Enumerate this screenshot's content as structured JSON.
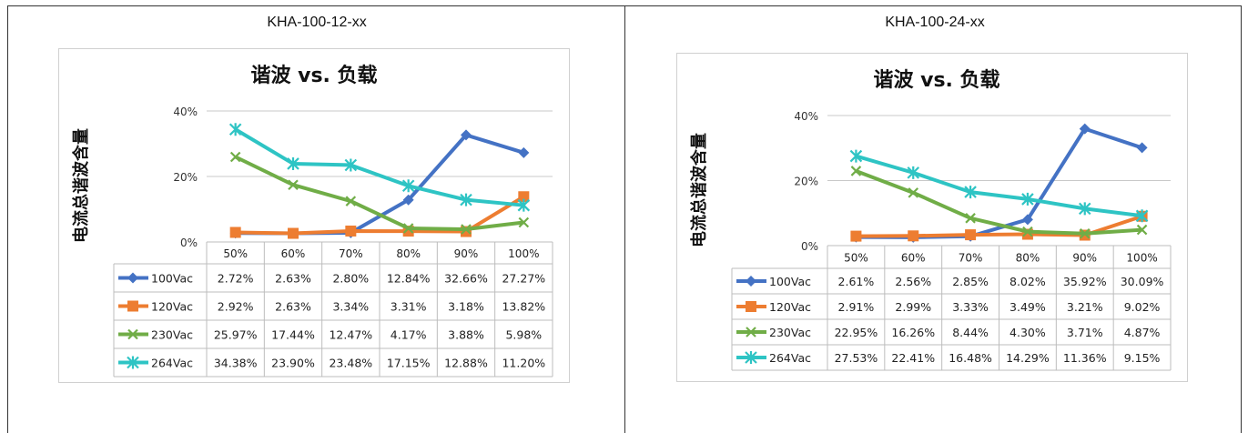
{
  "columns": [
    {
      "model": "KHA-100-12-xx"
    },
    {
      "model": "KHA-100-24-xx"
    }
  ],
  "chart_data": [
    {
      "type": "line",
      "title": "谐波 vs. 负载",
      "ylabel": "电流总谐波含量",
      "xlabel": "",
      "categories": [
        "50%",
        "60%",
        "70%",
        "80%",
        "90%",
        "100%"
      ],
      "yticks": [
        "0%",
        "20%",
        "40%"
      ],
      "ylim": [
        0,
        40
      ],
      "grid": true,
      "legend": "data-table",
      "series": [
        {
          "name": "100Vac",
          "color": "#4472C4",
          "marker": "diamond",
          "values": [
            2.72,
            2.63,
            2.8,
            12.84,
            32.66,
            27.27
          ],
          "labels": [
            "2.72%",
            "2.63%",
            "2.80%",
            "12.84%",
            "32.66%",
            "27.27%"
          ]
        },
        {
          "name": "120Vac",
          "color": "#ED7D31",
          "marker": "square",
          "values": [
            2.92,
            2.63,
            3.34,
            3.31,
            3.18,
            13.82
          ],
          "labels": [
            "2.92%",
            "2.63%",
            "3.34%",
            "3.31%",
            "3.18%",
            "13.82%"
          ]
        },
        {
          "name": "230Vac",
          "color": "#70AD47",
          "marker": "x",
          "values": [
            25.97,
            17.44,
            12.47,
            4.17,
            3.88,
            5.98
          ],
          "labels": [
            "25.97%",
            "17.44%",
            "12.47%",
            "4.17%",
            "3.88%",
            "5.98%"
          ]
        },
        {
          "name": "264Vac",
          "color": "#2EC4C4",
          "marker": "star",
          "values": [
            34.38,
            23.9,
            23.48,
            17.15,
            12.88,
            11.2
          ],
          "labels": [
            "34.38%",
            "23.90%",
            "23.48%",
            "17.15%",
            "12.88%",
            "11.20%"
          ]
        }
      ]
    },
    {
      "type": "line",
      "title": "谐波 vs. 负载",
      "ylabel": "电流总谐波含量",
      "xlabel": "",
      "categories": [
        "50%",
        "60%",
        "70%",
        "80%",
        "90%",
        "100%"
      ],
      "yticks": [
        "0%",
        "20%",
        "40%"
      ],
      "ylim": [
        0,
        40
      ],
      "grid": true,
      "legend": "data-table",
      "series": [
        {
          "name": "100Vac",
          "color": "#4472C4",
          "marker": "diamond",
          "values": [
            2.61,
            2.56,
            2.85,
            8.02,
            35.92,
            30.09
          ],
          "labels": [
            "2.61%",
            "2.56%",
            "2.85%",
            "8.02%",
            "35.92%",
            "30.09%"
          ]
        },
        {
          "name": "120Vac",
          "color": "#ED7D31",
          "marker": "square",
          "values": [
            2.91,
            2.99,
            3.33,
            3.49,
            3.21,
            9.02
          ],
          "labels": [
            "2.91%",
            "2.99%",
            "3.33%",
            "3.49%",
            "3.21%",
            "9.02%"
          ]
        },
        {
          "name": "230Vac",
          "color": "#70AD47",
          "marker": "x",
          "values": [
            22.95,
            16.26,
            8.44,
            4.3,
            3.71,
            4.87
          ],
          "labels": [
            "22.95%",
            "16.26%",
            "8.44%",
            "4.30%",
            "3.71%",
            "4.87%"
          ]
        },
        {
          "name": "264Vac",
          "color": "#2EC4C4",
          "marker": "star",
          "values": [
            27.53,
            22.41,
            16.48,
            14.29,
            11.36,
            9.15
          ],
          "labels": [
            "27.53%",
            "22.41%",
            "16.48%",
            "14.29%",
            "11.36%",
            "9.15%"
          ]
        }
      ]
    }
  ]
}
